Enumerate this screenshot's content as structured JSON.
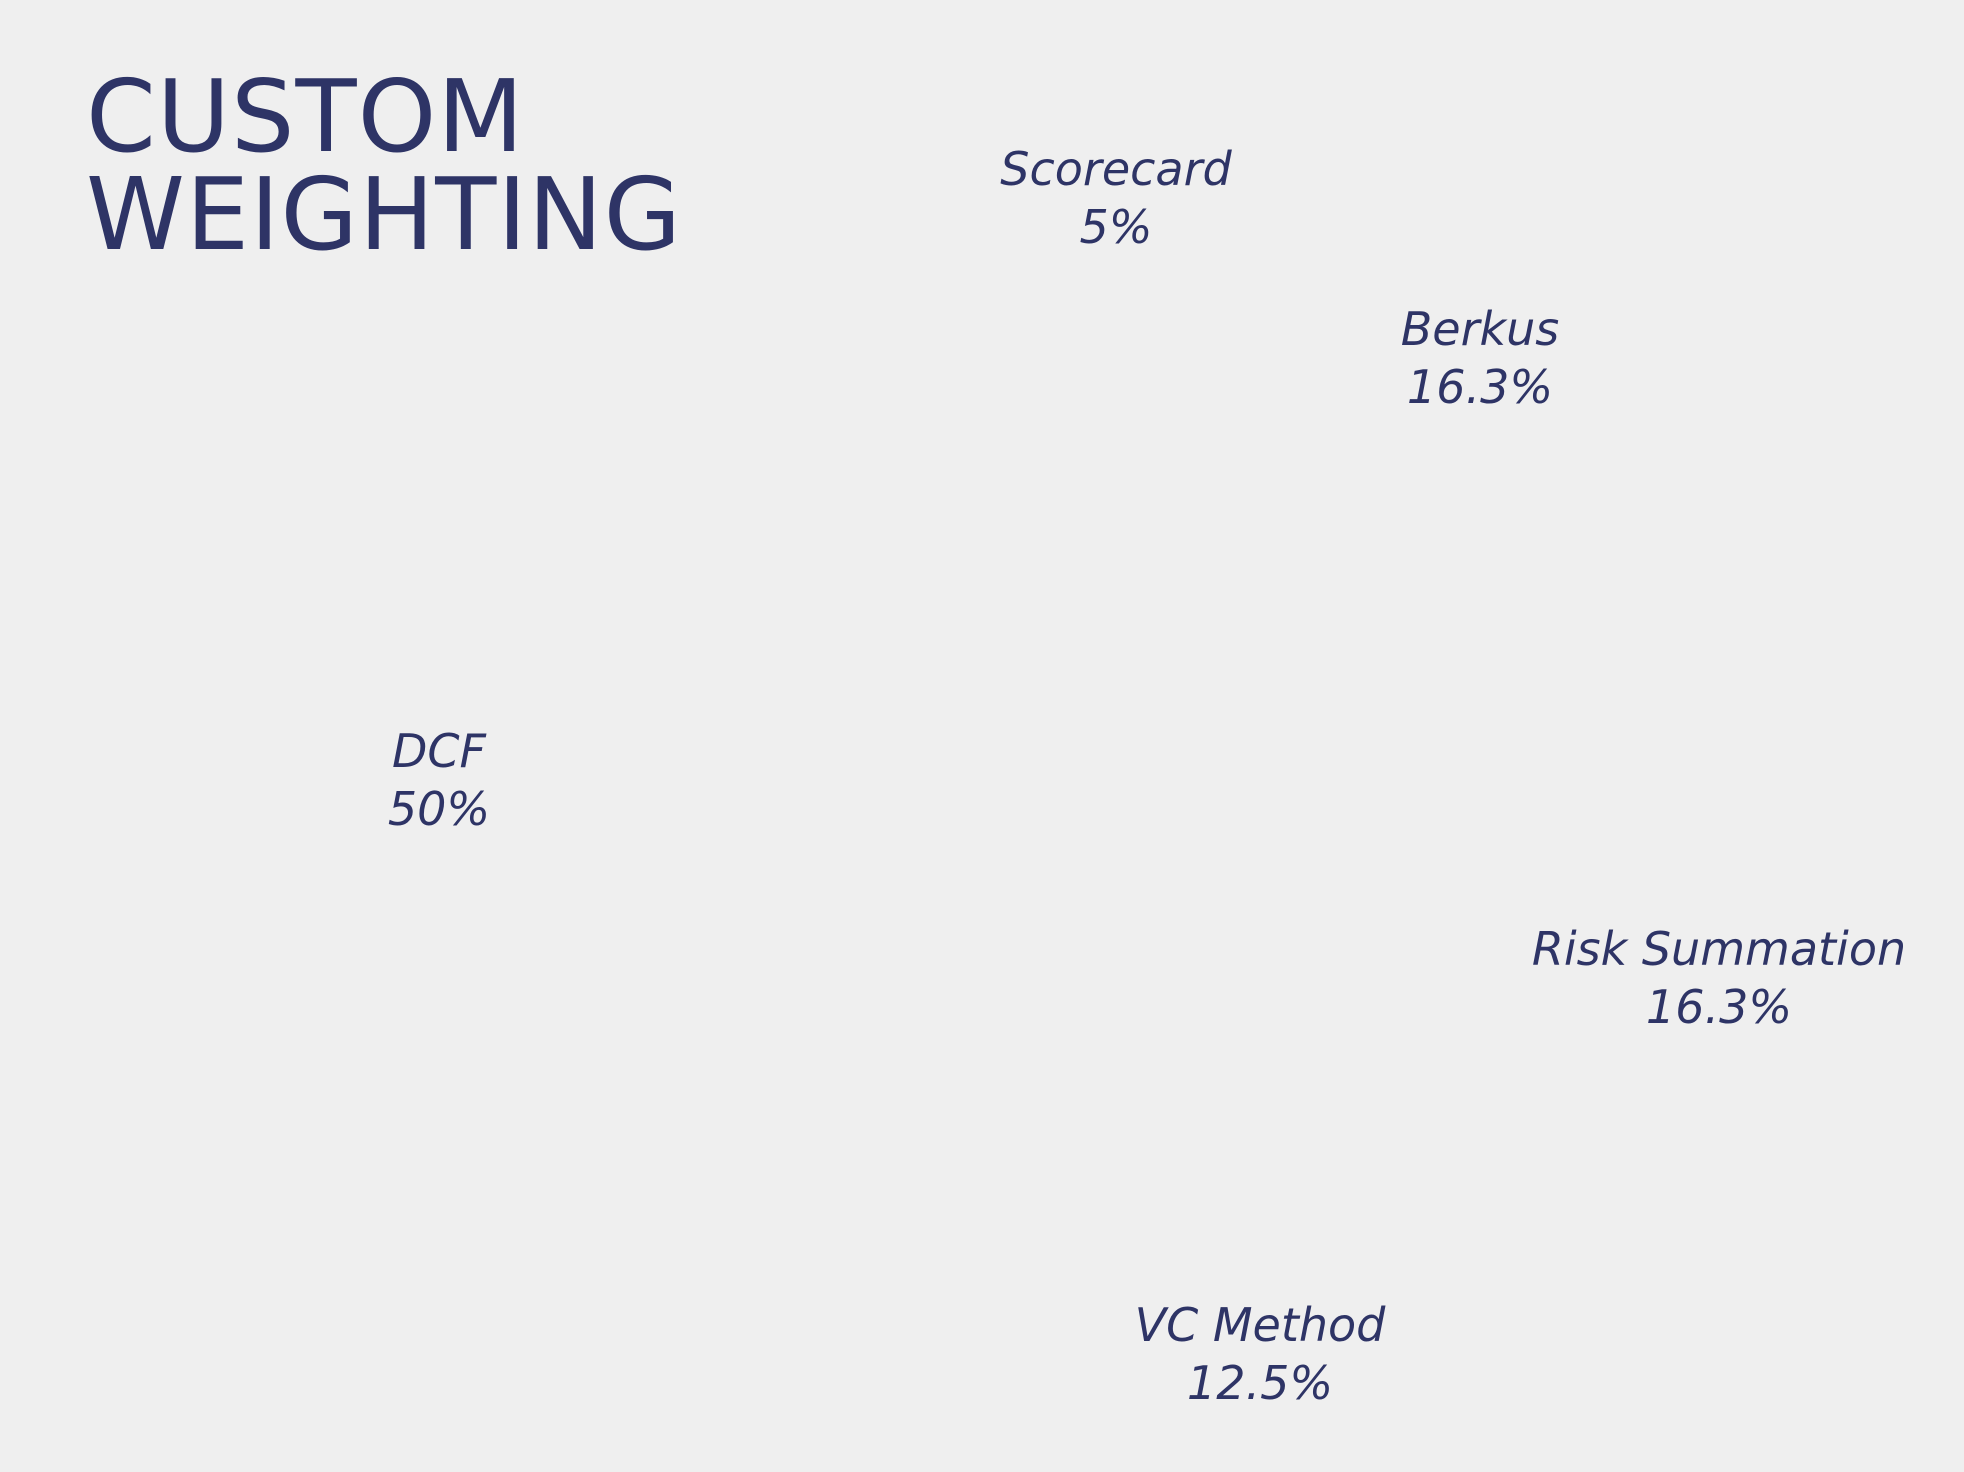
{
  "title": {
    "line1": "CUSTOM",
    "line2": "WEIGHTING"
  },
  "chart_data": {
    "type": "pie",
    "title": "CUSTOM WEIGHTING",
    "categories": [
      "Scorecard",
      "Berkus",
      "Risk Summation",
      "VC Method",
      "DCF"
    ],
    "values": [
      5,
      16.3,
      16.3,
      12.5,
      50
    ],
    "labels": [
      "5%",
      "16.3%",
      "16.3%",
      "12.5%",
      "50%"
    ],
    "text_color": "#2e3466",
    "background": "#efefef"
  },
  "slices": {
    "scorecard": {
      "name": "Scorecard",
      "pct": "5%"
    },
    "berkus": {
      "name": "Berkus",
      "pct": "16.3%"
    },
    "dcf": {
      "name": "DCF",
      "pct": "50%"
    },
    "risk": {
      "name": "Risk Summation",
      "pct": "16.3%"
    },
    "vc": {
      "name": "VC Method",
      "pct": "12.5%"
    }
  }
}
